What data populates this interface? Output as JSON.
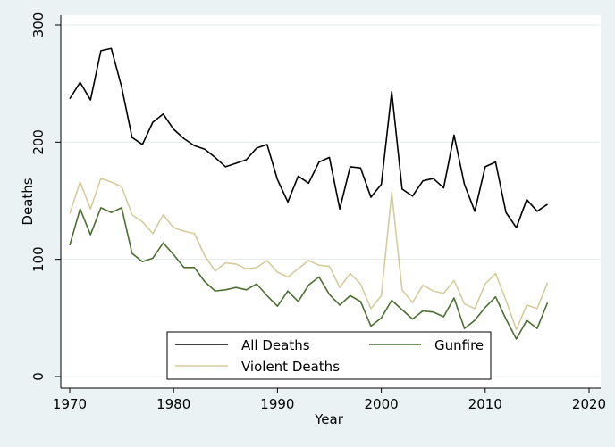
{
  "chart_data": {
    "type": "line",
    "title": "",
    "xlabel": "Year",
    "ylabel": "Deaths",
    "xlim": [
      1970,
      2020
    ],
    "ylim": [
      0,
      300
    ],
    "xticks": [
      "1970",
      "1980",
      "1990",
      "2000",
      "2010",
      "2020"
    ],
    "yticks": [
      "0",
      "100",
      "200",
      "300"
    ],
    "grid": "horizontal",
    "legend_position": "bottom-center",
    "x": [
      1970,
      1971,
      1972,
      1973,
      1974,
      1975,
      1976,
      1977,
      1978,
      1979,
      1980,
      1981,
      1982,
      1983,
      1984,
      1985,
      1986,
      1987,
      1988,
      1989,
      1990,
      1991,
      1992,
      1993,
      1994,
      1995,
      1996,
      1997,
      1998,
      1999,
      2000,
      2001,
      2002,
      2003,
      2004,
      2005,
      2006,
      2007,
      2008,
      2009,
      2010,
      2011,
      2012,
      2013,
      2014,
      2015,
      2016
    ],
    "series": [
      {
        "name": "All Deaths",
        "color": "#000000",
        "values": [
          237,
          251,
          236,
          278,
          280,
          247,
          204,
          198,
          217,
          224,
          211,
          203,
          197,
          194,
          187,
          179,
          182,
          185,
          195,
          198,
          168,
          149,
          171,
          165,
          183,
          187,
          143,
          179,
          178,
          153,
          164,
          243,
          160,
          154,
          167,
          169,
          161,
          206,
          164,
          141,
          179,
          183,
          140,
          127,
          151,
          141,
          147
        ]
      },
      {
        "name": "Gunfire",
        "color": "#4d6e31",
        "values": [
          112,
          143,
          121,
          144,
          140,
          144,
          105,
          98,
          101,
          114,
          104,
          93,
          93,
          81,
          73,
          74,
          76,
          74,
          79,
          69,
          60,
          73,
          64,
          78,
          85,
          70,
          61,
          69,
          64,
          43,
          50,
          65,
          57,
          49,
          56,
          55,
          51,
          67,
          41,
          48,
          59,
          68,
          49,
          32,
          48,
          41,
          63
        ]
      },
      {
        "name": "Violent Deaths",
        "color": "#d4cc9c",
        "values": [
          139,
          166,
          143,
          169,
          166,
          162,
          138,
          132,
          122,
          138,
          127,
          124,
          122,
          103,
          90,
          97,
          96,
          92,
          93,
          99,
          89,
          85,
          92,
          99,
          95,
          94,
          76,
          88,
          79,
          58,
          69,
          157,
          74,
          63,
          78,
          73,
          71,
          82,
          62,
          58,
          79,
          88,
          65,
          40,
          61,
          58,
          80
        ]
      }
    ],
    "legend": [
      {
        "label": "All Deaths",
        "color": "#000000"
      },
      {
        "label": "Gunfire",
        "color": "#4d6e31"
      },
      {
        "label": "Violent Deaths",
        "color": "#d4cc9c"
      }
    ]
  }
}
